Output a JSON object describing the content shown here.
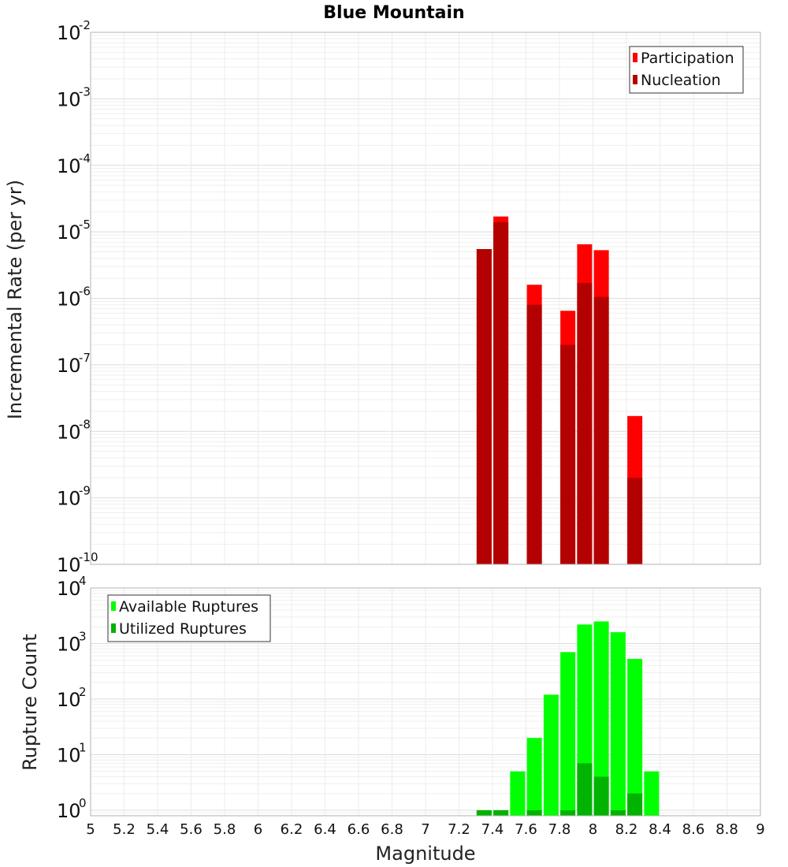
{
  "chart_data": [
    {
      "type": "bar",
      "title": "Blue Mountain",
      "xlabel": "Magnitude",
      "ylabel": "Incremental Rate (per yr)",
      "yscale": "log",
      "ylim_exponents": [
        -10,
        -2
      ],
      "ytick_exponents": [
        "-10",
        "-9",
        "-8",
        "-7",
        "-6",
        "-5",
        "-4",
        "-3",
        "-2"
      ],
      "xlim": [
        5,
        9
      ],
      "grid": true,
      "legend_position": "top-right",
      "series": [
        {
          "name": "Participation",
          "color": "#ff0000",
          "x": [
            7.35,
            7.45,
            7.65,
            7.85,
            7.95,
            8.05,
            8.25
          ],
          "values": [
            5.5e-06,
            1.7e-05,
            1.6e-06,
            6.5e-07,
            6.5e-06,
            5.3e-06,
            1.7e-08
          ]
        },
        {
          "name": "Nucleation",
          "color": "#b30000",
          "x": [
            7.35,
            7.45,
            7.65,
            7.85,
            7.95,
            8.05,
            8.25
          ],
          "values": [
            5.5e-06,
            1.4e-05,
            8e-07,
            2e-07,
            1.7e-06,
            1.05e-06,
            2e-09
          ]
        }
      ]
    },
    {
      "type": "bar",
      "xlabel": "Magnitude",
      "ylabel": "Rupture Count",
      "yscale": "log",
      "ylim_exponents": [
        -0.1,
        4
      ],
      "ytick_exponents": [
        "0",
        "1",
        "2",
        "3",
        "4"
      ],
      "xlim": [
        5,
        9
      ],
      "grid": true,
      "legend_position": "top-left",
      "series": [
        {
          "name": "Available Ruptures",
          "color": "#00ff00",
          "x": [
            7.35,
            7.45,
            7.55,
            7.65,
            7.75,
            7.85,
            7.95,
            8.05,
            8.15,
            8.25,
            8.35
          ],
          "values": [
            1,
            1,
            5,
            20,
            120,
            700,
            2200,
            2500,
            1600,
            530,
            5
          ]
        },
        {
          "name": "Utilized Ruptures",
          "color": "#00b300",
          "x": [
            7.35,
            7.45,
            7.65,
            7.85,
            7.95,
            8.05,
            8.15,
            8.25
          ],
          "values": [
            1,
            1,
            1,
            1,
            7,
            4,
            1,
            2
          ]
        }
      ]
    }
  ],
  "x_ticks": [
    "5",
    "5.2",
    "5.4",
    "5.6",
    "5.8",
    "6",
    "6.2",
    "6.4",
    "6.6",
    "6.8",
    "7",
    "7.2",
    "7.4",
    "7.6",
    "7.8",
    "8",
    "8.2",
    "8.4",
    "8.6",
    "8.8",
    "9"
  ]
}
